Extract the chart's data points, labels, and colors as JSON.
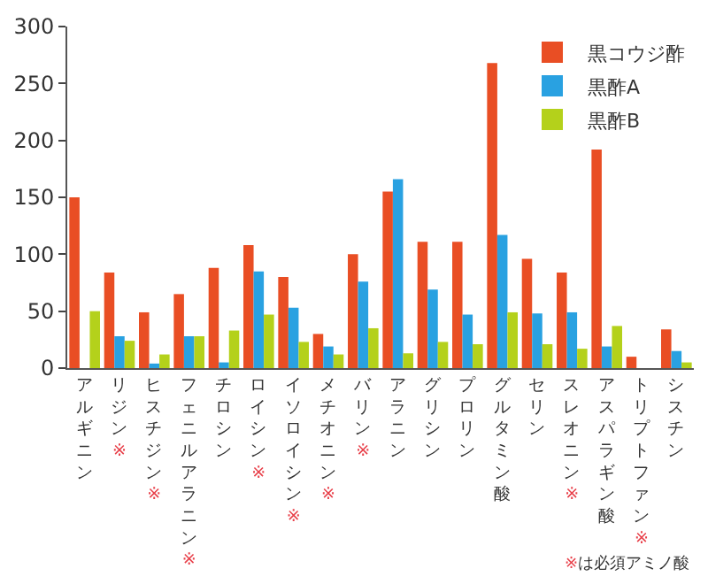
{
  "chart_data": {
    "type": "bar",
    "categories": [
      "アルギニン",
      "リジン※",
      "ヒスチジン※",
      "フェニルアラニン※",
      "チロシン",
      "ロイシン※",
      "イソロイシン※",
      "メチオニン※",
      "バリン※",
      "アラニン",
      "グリシン",
      "プロリン",
      "グルタミン酸",
      "セリン",
      "スレオニン※",
      "アスパラギン酸",
      "トリプトファン※",
      "シスチン"
    ],
    "series": [
      {
        "name": "黒コウジ酢",
        "color": "#e94e24",
        "values": [
          150,
          84,
          49,
          65,
          88,
          108,
          80,
          30,
          100,
          155,
          111,
          111,
          268,
          96,
          84,
          192,
          10,
          34
        ]
      },
      {
        "name": "黒酢A",
        "color": "#29a1e1",
        "values": [
          null,
          28,
          4,
          28,
          5,
          85,
          53,
          19,
          76,
          166,
          69,
          47,
          117,
          48,
          49,
          19,
          null,
          15
        ]
      },
      {
        "name": "黒酢B",
        "color": "#b4d11b",
        "values": [
          50,
          24,
          12,
          28,
          33,
          47,
          23,
          12,
          35,
          13,
          23,
          21,
          49,
          21,
          17,
          37,
          null,
          5
        ]
      }
    ],
    "ylim": [
      0,
      300
    ],
    "yticks": [
      0,
      50,
      100,
      150,
      200,
      250,
      300
    ],
    "legend": "top right",
    "annotations": [
      "※は必須アミノ酸"
    ]
  }
}
